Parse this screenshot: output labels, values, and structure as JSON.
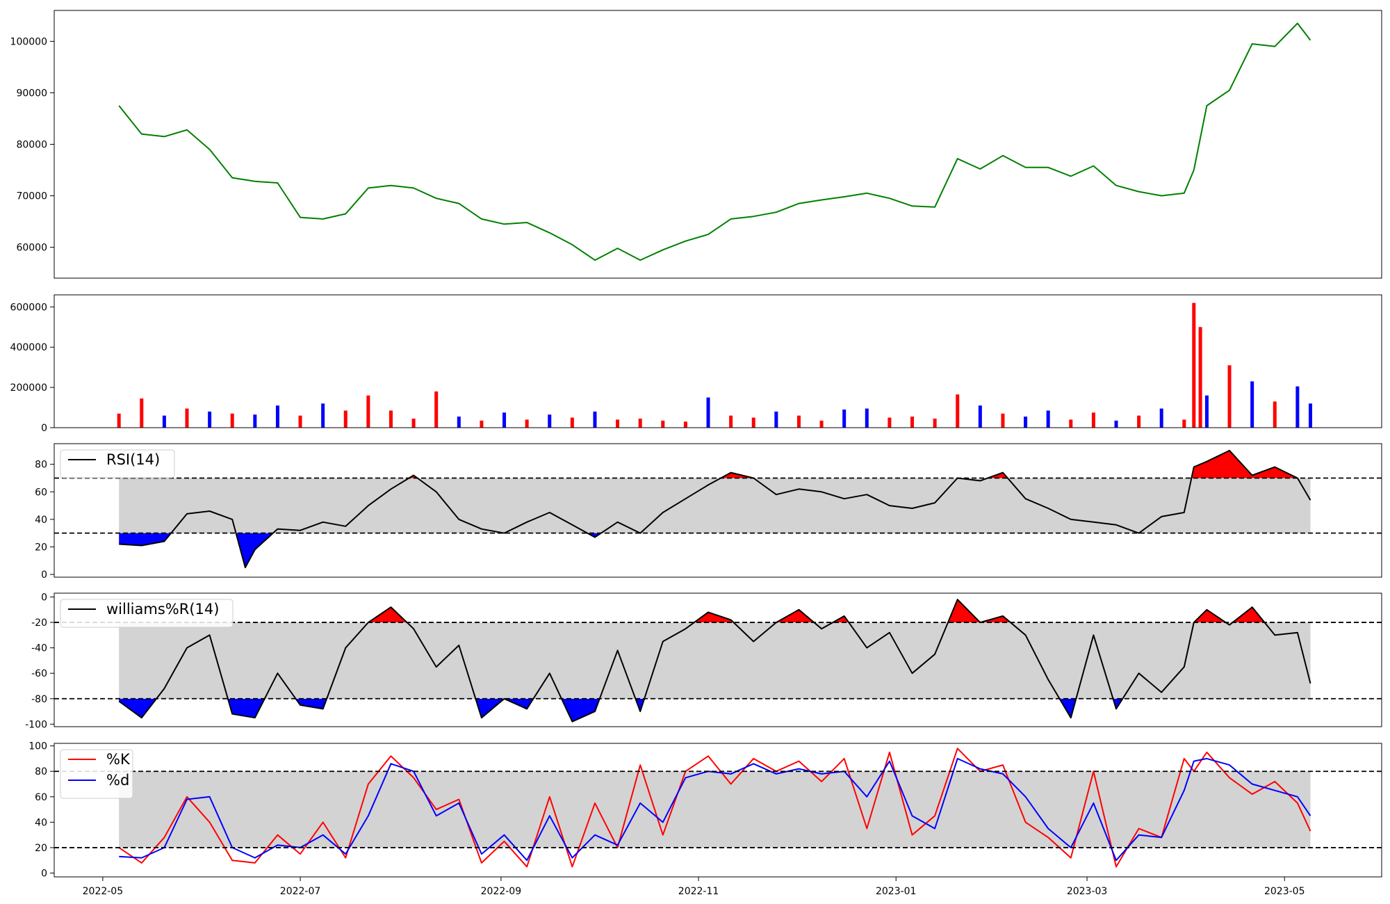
{
  "chart_data": [
    {
      "type": "line",
      "panel": "price",
      "title": "",
      "xlabel": "",
      "ylabel": "",
      "ylim": [
        54000,
        106000
      ],
      "yticks": [
        60000,
        70000,
        80000,
        90000,
        100000
      ],
      "color": "#008000",
      "series": [
        {
          "x": [
            "2022-05-06",
            "2022-05-13",
            "2022-05-20",
            "2022-05-27",
            "2022-06-03",
            "2022-06-10",
            "2022-06-17",
            "2022-06-24",
            "2022-07-01",
            "2022-07-08",
            "2022-07-15",
            "2022-07-22",
            "2022-07-29",
            "2022-08-05",
            "2022-08-12",
            "2022-08-19",
            "2022-08-26",
            "2022-09-02",
            "2022-09-09",
            "2022-09-16",
            "2022-09-23",
            "2022-09-30",
            "2022-10-07",
            "2022-10-14",
            "2022-10-21",
            "2022-10-28",
            "2022-11-04",
            "2022-11-11",
            "2022-11-18",
            "2022-11-25",
            "2022-12-02",
            "2022-12-09",
            "2022-12-16",
            "2022-12-23",
            "2022-12-30",
            "2023-01-06",
            "2023-01-13",
            "2023-01-20",
            "2023-01-27",
            "2023-02-03",
            "2023-02-10",
            "2023-02-17",
            "2023-02-24",
            "2023-03-03",
            "2023-03-10",
            "2023-03-17",
            "2023-03-24",
            "2023-03-31",
            "2023-04-03",
            "2023-04-07",
            "2023-04-14",
            "2023-04-21",
            "2023-04-28",
            "2023-05-05",
            "2023-05-09"
          ],
          "values": [
            87500,
            82000,
            81500,
            82800,
            79000,
            73500,
            72800,
            72500,
            65800,
            65500,
            66500,
            71500,
            72000,
            71500,
            69500,
            68500,
            65500,
            64500,
            64800,
            62800,
            60500,
            57500,
            59800,
            57500,
            59500,
            61200,
            62500,
            65500,
            66000,
            66800,
            68500,
            69200,
            69800,
            70500,
            69500,
            68000,
            67800,
            77200,
            75200,
            77800,
            75500,
            75500,
            73800,
            75800,
            72000,
            70800,
            70000,
            70500,
            75000,
            87500,
            90500,
            99500,
            99000,
            103500,
            100200
          ]
        }
      ]
    },
    {
      "type": "bar",
      "panel": "volume",
      "title": "",
      "xlabel": "",
      "ylabel": "",
      "ylim": [
        0,
        660000
      ],
      "yticks": [
        0,
        200000,
        400000,
        600000
      ],
      "colors": {
        "up": "#ff0000",
        "down": "#0000ff",
        "neutral": "#000000"
      },
      "series": [
        {
          "x": [
            "2022-05-06",
            "2022-05-13",
            "2022-05-20",
            "2022-05-27",
            "2022-06-03",
            "2022-06-10",
            "2022-06-17",
            "2022-06-24",
            "2022-07-01",
            "2022-07-08",
            "2022-07-15",
            "2022-07-22",
            "2022-07-29",
            "2022-08-05",
            "2022-08-12",
            "2022-08-19",
            "2022-08-26",
            "2022-09-02",
            "2022-09-09",
            "2022-09-16",
            "2022-09-23",
            "2022-09-30",
            "2022-10-07",
            "2022-10-14",
            "2022-10-21",
            "2022-10-28",
            "2022-11-04",
            "2022-11-11",
            "2022-11-18",
            "2022-11-25",
            "2022-12-02",
            "2022-12-09",
            "2022-12-16",
            "2022-12-23",
            "2022-12-30",
            "2023-01-06",
            "2023-01-13",
            "2023-01-20",
            "2023-01-27",
            "2023-02-03",
            "2023-02-10",
            "2023-02-17",
            "2023-02-24",
            "2023-03-03",
            "2023-03-10",
            "2023-03-17",
            "2023-03-24",
            "2023-03-31",
            "2023-04-03",
            "2023-04-05",
            "2023-04-07",
            "2023-04-14",
            "2023-04-21",
            "2023-04-28",
            "2023-05-05",
            "2023-05-09"
          ],
          "values": [
            70000,
            145000,
            60000,
            95000,
            80000,
            70000,
            65000,
            110000,
            60000,
            120000,
            85000,
            160000,
            85000,
            45000,
            180000,
            55000,
            35000,
            75000,
            40000,
            65000,
            50000,
            80000,
            40000,
            45000,
            35000,
            30000,
            150000,
            60000,
            50000,
            80000,
            60000,
            35000,
            90000,
            95000,
            50000,
            55000,
            45000,
            165000,
            110000,
            70000,
            55000,
            85000,
            40000,
            75000,
            35000,
            60000,
            95000,
            40000,
            620000,
            500000,
            160000,
            310000,
            230000,
            130000,
            205000,
            120000
          ],
          "up": [
            true,
            true,
            false,
            true,
            false,
            true,
            false,
            false,
            true,
            false,
            true,
            true,
            true,
            true,
            true,
            false,
            true,
            false,
            true,
            false,
            true,
            false,
            true,
            true,
            true,
            true,
            false,
            true,
            true,
            false,
            true,
            true,
            false,
            false,
            true,
            true,
            true,
            true,
            false,
            true,
            false,
            false,
            true,
            true,
            false,
            true,
            false,
            true,
            true,
            true,
            false,
            true,
            false,
            true,
            false,
            false
          ]
        }
      ]
    },
    {
      "type": "area",
      "panel": "rsi",
      "title": "",
      "ylim": [
        -2,
        95
      ],
      "yticks": [
        0,
        20,
        40,
        60,
        80
      ],
      "bands": [
        30,
        70
      ],
      "series": [
        {
          "name": "RSI(14)",
          "x": [
            "2022-05-06",
            "2022-05-13",
            "2022-05-20",
            "2022-05-27",
            "2022-06-03",
            "2022-06-10",
            "2022-06-14",
            "2022-06-17",
            "2022-06-24",
            "2022-07-01",
            "2022-07-08",
            "2022-07-15",
            "2022-07-22",
            "2022-07-29",
            "2022-08-05",
            "2022-08-12",
            "2022-08-19",
            "2022-08-26",
            "2022-09-02",
            "2022-09-09",
            "2022-09-16",
            "2022-09-23",
            "2022-09-30",
            "2022-10-07",
            "2022-10-14",
            "2022-10-21",
            "2022-10-28",
            "2022-11-04",
            "2022-11-11",
            "2022-11-18",
            "2022-11-25",
            "2022-12-02",
            "2022-12-09",
            "2022-12-16",
            "2022-12-23",
            "2022-12-30",
            "2023-01-06",
            "2023-01-13",
            "2023-01-20",
            "2023-01-27",
            "2023-02-03",
            "2023-02-10",
            "2023-02-17",
            "2023-02-24",
            "2023-03-03",
            "2023-03-10",
            "2023-03-17",
            "2023-03-24",
            "2023-03-31",
            "2023-04-03",
            "2023-04-07",
            "2023-04-14",
            "2023-04-21",
            "2023-04-28",
            "2023-05-05",
            "2023-05-09"
          ],
          "values": [
            22,
            21,
            24,
            44,
            46,
            40,
            5,
            18,
            33,
            32,
            38,
            35,
            50,
            62,
            72,
            60,
            40,
            33,
            30,
            38,
            45,
            36,
            27,
            38,
            30,
            45,
            55,
            65,
            74,
            70,
            58,
            62,
            60,
            55,
            58,
            50,
            48,
            52,
            70,
            68,
            74,
            55,
            48,
            40,
            38,
            36,
            30,
            42,
            45,
            78,
            82,
            90,
            72,
            78,
            70,
            54
          ]
        }
      ]
    },
    {
      "type": "area",
      "panel": "williams",
      "title": "",
      "ylim": [
        -102,
        3
      ],
      "yticks": [
        0,
        -20,
        -40,
        -60,
        -80,
        -100
      ],
      "bands": [
        -20,
        -80
      ],
      "series": [
        {
          "name": "williams%R(14)",
          "x": [
            "2022-05-06",
            "2022-05-13",
            "2022-05-20",
            "2022-05-27",
            "2022-06-03",
            "2022-06-10",
            "2022-06-17",
            "2022-06-24",
            "2022-07-01",
            "2022-07-08",
            "2022-07-15",
            "2022-07-22",
            "2022-07-29",
            "2022-08-05",
            "2022-08-12",
            "2022-08-19",
            "2022-08-26",
            "2022-09-02",
            "2022-09-09",
            "2022-09-16",
            "2022-09-23",
            "2022-09-30",
            "2022-10-07",
            "2022-10-14",
            "2022-10-21",
            "2022-10-28",
            "2022-11-04",
            "2022-11-11",
            "2022-11-18",
            "2022-11-25",
            "2022-12-02",
            "2022-12-09",
            "2022-12-16",
            "2022-12-23",
            "2022-12-30",
            "2023-01-06",
            "2023-01-13",
            "2023-01-20",
            "2023-01-27",
            "2023-02-03",
            "2023-02-10",
            "2023-02-17",
            "2023-02-24",
            "2023-03-03",
            "2023-03-10",
            "2023-03-17",
            "2023-03-24",
            "2023-03-31",
            "2023-04-03",
            "2023-04-07",
            "2023-04-14",
            "2023-04-21",
            "2023-04-28",
            "2023-05-05",
            "2023-05-09"
          ],
          "values": [
            -82,
            -95,
            -72,
            -40,
            -30,
            -92,
            -95,
            -60,
            -85,
            -88,
            -40,
            -20,
            -8,
            -25,
            -55,
            -38,
            -95,
            -80,
            -88,
            -60,
            -98,
            -90,
            -42,
            -90,
            -35,
            -25,
            -12,
            -18,
            -35,
            -20,
            -10,
            -25,
            -15,
            -40,
            -28,
            -60,
            -45,
            -2,
            -20,
            -15,
            -30,
            -65,
            -95,
            -30,
            -88,
            -60,
            -75,
            -55,
            -20,
            -10,
            -22,
            -8,
            -30,
            -28,
            -68
          ]
        }
      ]
    },
    {
      "type": "line",
      "panel": "stochastic",
      "title": "",
      "ylim": [
        -3,
        102
      ],
      "yticks": [
        0,
        20,
        40,
        60,
        80,
        100
      ],
      "bands": [
        20,
        80
      ],
      "legend": "upper-left",
      "series": [
        {
          "name": "%K",
          "color": "#ff0000",
          "x": [
            "2022-05-06",
            "2022-05-13",
            "2022-05-20",
            "2022-05-27",
            "2022-06-03",
            "2022-06-10",
            "2022-06-17",
            "2022-06-24",
            "2022-07-01",
            "2022-07-08",
            "2022-07-15",
            "2022-07-22",
            "2022-07-29",
            "2022-08-05",
            "2022-08-12",
            "2022-08-19",
            "2022-08-26",
            "2022-09-02",
            "2022-09-09",
            "2022-09-16",
            "2022-09-23",
            "2022-09-30",
            "2022-10-07",
            "2022-10-14",
            "2022-10-21",
            "2022-10-28",
            "2022-11-04",
            "2022-11-11",
            "2022-11-18",
            "2022-11-25",
            "2022-12-02",
            "2022-12-09",
            "2022-12-16",
            "2022-12-23",
            "2022-12-30",
            "2023-01-06",
            "2023-01-13",
            "2023-01-20",
            "2023-01-27",
            "2023-02-03",
            "2023-02-10",
            "2023-02-17",
            "2023-02-24",
            "2023-03-03",
            "2023-03-10",
            "2023-03-17",
            "2023-03-24",
            "2023-03-31",
            "2023-04-03",
            "2023-04-07",
            "2023-04-14",
            "2023-04-21",
            "2023-04-28",
            "2023-05-05",
            "2023-05-09"
          ],
          "values": [
            20,
            8,
            28,
            60,
            40,
            10,
            8,
            30,
            15,
            40,
            12,
            70,
            92,
            75,
            50,
            58,
            8,
            25,
            5,
            60,
            5,
            55,
            20,
            85,
            30,
            80,
            92,
            70,
            90,
            80,
            88,
            72,
            90,
            35,
            95,
            30,
            45,
            98,
            80,
            85,
            40,
            28,
            12,
            80,
            5,
            35,
            28,
            90,
            80,
            95,
            75,
            62,
            72,
            55,
            33
          ]
        },
        {
          "name": "%d",
          "color": "#0000ff",
          "x": [
            "2022-05-06",
            "2022-05-13",
            "2022-05-20",
            "2022-05-27",
            "2022-06-03",
            "2022-06-10",
            "2022-06-17",
            "2022-06-24",
            "2022-07-01",
            "2022-07-08",
            "2022-07-15",
            "2022-07-22",
            "2022-07-29",
            "2022-08-05",
            "2022-08-12",
            "2022-08-19",
            "2022-08-26",
            "2022-09-02",
            "2022-09-09",
            "2022-09-16",
            "2022-09-23",
            "2022-09-30",
            "2022-10-07",
            "2022-10-14",
            "2022-10-21",
            "2022-10-28",
            "2022-11-04",
            "2022-11-11",
            "2022-11-18",
            "2022-11-25",
            "2022-12-02",
            "2022-12-09",
            "2022-12-16",
            "2022-12-23",
            "2022-12-30",
            "2023-01-06",
            "2023-01-13",
            "2023-01-20",
            "2023-01-27",
            "2023-02-03",
            "2023-02-10",
            "2023-02-17",
            "2023-02-24",
            "2023-03-03",
            "2023-03-10",
            "2023-03-17",
            "2023-03-24",
            "2023-03-31",
            "2023-04-03",
            "2023-04-07",
            "2023-04-14",
            "2023-04-21",
            "2023-04-28",
            "2023-05-05",
            "2023-05-09"
          ],
          "values": [
            13,
            12,
            20,
            58,
            60,
            20,
            12,
            22,
            20,
            30,
            15,
            45,
            86,
            80,
            45,
            55,
            15,
            30,
            10,
            45,
            12,
            30,
            22,
            55,
            40,
            75,
            80,
            78,
            86,
            78,
            82,
            78,
            80,
            60,
            88,
            45,
            35,
            90,
            82,
            78,
            60,
            35,
            20,
            55,
            10,
            30,
            28,
            65,
            88,
            90,
            85,
            70,
            65,
            60,
            45
          ]
        }
      ]
    }
  ],
  "x_axis": {
    "domain": [
      "2022-04-16",
      "2023-05-31"
    ],
    "ticks": [
      "2022-05",
      "2022-07",
      "2022-09",
      "2022-11",
      "2023-01",
      "2023-03",
      "2023-05"
    ],
    "tick_dates": [
      "2022-05-01",
      "2022-07-01",
      "2022-09-01",
      "2022-11-01",
      "2023-01-01",
      "2023-03-01",
      "2023-05-01"
    ]
  },
  "colors": {
    "overbought_fill": "#ff0000",
    "oversold_fill": "#0000ff",
    "band_fill": "#d3d3d3",
    "indicator_line": "#000000"
  }
}
